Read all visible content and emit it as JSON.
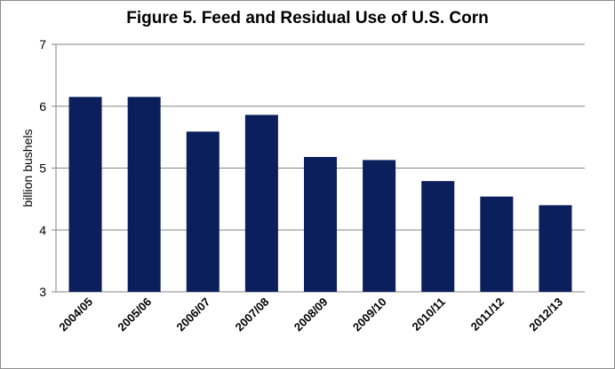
{
  "chart_data": {
    "type": "bar",
    "title": "Figure 5. Feed and Residual Use of U.S. Corn",
    "xlabel": "",
    "ylabel": "billion bushels",
    "categories": [
      "2004/05",
      "2005/06",
      "2006/07",
      "2007/08",
      "2008/09",
      "2009/10",
      "2010/11",
      "2011/12",
      "2012/13"
    ],
    "values": [
      6.15,
      6.15,
      5.59,
      5.86,
      5.18,
      5.13,
      4.79,
      4.54,
      4.4
    ],
    "ylim": [
      3,
      7
    ],
    "yticks": [
      "3",
      "4",
      "5",
      "6",
      "7"
    ],
    "grid": true,
    "legend": "none",
    "bar_color": "#0b1f5c",
    "grid_color": "#868686"
  }
}
